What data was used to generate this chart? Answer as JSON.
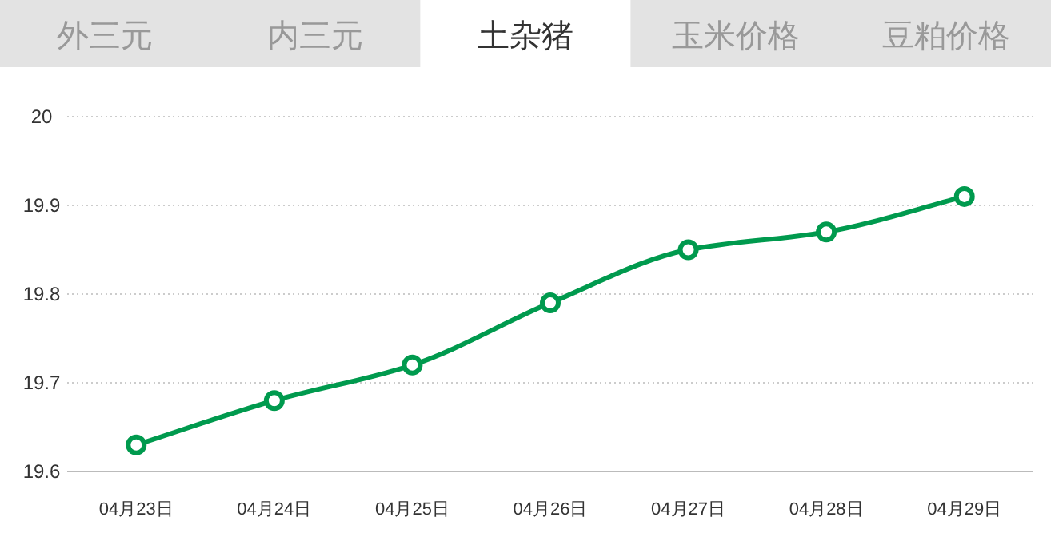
{
  "chart_data": {
    "type": "line",
    "title": "土杂猪",
    "annotations": [
      "外三元",
      "内三元",
      "玉米价格",
      "豆粕价格"
    ],
    "categories": [
      "04月23日",
      "04月24日",
      "04月25日",
      "04月26日",
      "04月27日",
      "04月28日",
      "04月29日"
    ],
    "series": [
      {
        "color": "#009a4e",
        "values": [
          19.63,
          19.68,
          19.72,
          19.79,
          19.85,
          19.87,
          19.91
        ]
      }
    ],
    "ylim": [
      19.6,
      20
    ],
    "yticks": [
      19.6,
      19.7,
      19.8,
      19.9,
      20
    ],
    "grid": "y",
    "marker": "circle",
    "line_style": "solid"
  }
}
